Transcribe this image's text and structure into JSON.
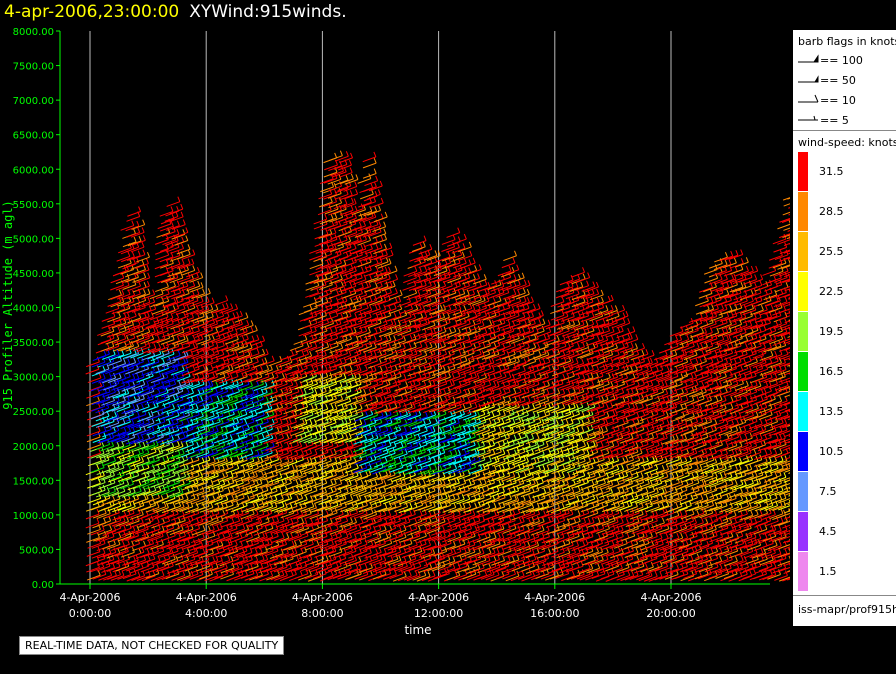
{
  "header": {
    "date_time": "4-apr-2006,23:00:00",
    "product": "XYWind:915winds."
  },
  "legend": {
    "barb_title": "barb flags in knots",
    "barb_items": [
      "== 100",
      "== 50",
      "== 10",
      "== 5"
    ],
    "speed_title": "wind-speed: knots",
    "speed_labels": [
      "31.5",
      "28.5",
      "25.5",
      "22.5",
      "19.5",
      "16.5",
      "13.5",
      "10.5",
      "7.5",
      "4.5",
      "1.5"
    ],
    "colors": {
      "31.5": "#ff0000",
      "28.5": "#ff8800",
      "25.5": "#ffbb00",
      "22.5": "#ffff00",
      "19.5": "#99ff33",
      "16.5": "#00dd00",
      "13.5": "#00ffff",
      "10.5": "#0000ff",
      "7.5": "#6699ff",
      "4.5": "#9933ff",
      "1.5": "#ee88ee"
    },
    "source": "iss-mapr/prof915h"
  },
  "notice": "REAL-TIME DATA, NOT CHECKED FOR QUALITY",
  "chart_data": {
    "type": "wind barb time-height",
    "title": "4-apr-2006,23:00:00  XYWind:915winds.",
    "xlabel": "time",
    "ylabel": "915 Profiler Altitude (m agl)",
    "ylim": [
      0,
      8000
    ],
    "xlim_hours": [
      -0.3,
      24.6
    ],
    "grid": "vertical lines at 4-hour ticks",
    "y_ticks": [
      "0.00",
      "500.00",
      "1000.00",
      "1500.00",
      "2000.00",
      "2500.00",
      "3000.00",
      "3500.00",
      "4000.00",
      "4500.00",
      "5000.00",
      "5500.00",
      "6000.00",
      "6500.00",
      "7000.00",
      "7500.00",
      "8000.00"
    ],
    "x_ticks": [
      {
        "hour": 0,
        "date": "4-Apr-2006",
        "time": "0:00:00"
      },
      {
        "hour": 4,
        "date": "4-Apr-2006",
        "time": "4:00:00"
      },
      {
        "hour": 8,
        "date": "4-Apr-2006",
        "time": "8:00:00"
      },
      {
        "hour": 12,
        "date": "4-Apr-2006",
        "time": "12:00:00"
      },
      {
        "hour": 16,
        "date": "4-Apr-2006",
        "time": "16:00:00"
      },
      {
        "hour": 20,
        "date": "4-Apr-2006",
        "time": "20:00:00"
      }
    ],
    "data_top_altitude_m": [
      {
        "hour": 0.0,
        "top": 3200
      },
      {
        "hour": 0.5,
        "top": 4000
      },
      {
        "hour": 1.0,
        "top": 5000
      },
      {
        "hour": 1.3,
        "top": 5500
      },
      {
        "hour": 2.0,
        "top": 3600
      },
      {
        "hour": 2.3,
        "top": 5300
      },
      {
        "hour": 2.7,
        "top": 5600
      },
      {
        "hour": 3.2,
        "top": 4600
      },
      {
        "hour": 4.0,
        "top": 3900
      },
      {
        "hour": 4.3,
        "top": 4100
      },
      {
        "hour": 5.0,
        "top": 3800
      },
      {
        "hour": 5.5,
        "top": 3500
      },
      {
        "hour": 6.0,
        "top": 3100
      },
      {
        "hour": 7.0,
        "top": 3400
      },
      {
        "hour": 7.5,
        "top": 4700
      },
      {
        "hour": 8.0,
        "top": 6100
      },
      {
        "hour": 8.6,
        "top": 6200
      },
      {
        "hour": 9.0,
        "top": 5200
      },
      {
        "hour": 9.4,
        "top": 6200
      },
      {
        "hour": 10.0,
        "top": 4700
      },
      {
        "hour": 10.5,
        "top": 3800
      },
      {
        "hour": 11.0,
        "top": 5000
      },
      {
        "hour": 11.8,
        "top": 4600
      },
      {
        "hour": 12.3,
        "top": 5100
      },
      {
        "hour": 13.0,
        "top": 4500
      },
      {
        "hour": 13.6,
        "top": 4200
      },
      {
        "hour": 14.2,
        "top": 4700
      },
      {
        "hour": 15.0,
        "top": 4000
      },
      {
        "hour": 15.6,
        "top": 3500
      },
      {
        "hour": 16.0,
        "top": 4300
      },
      {
        "hour": 16.6,
        "top": 4500
      },
      {
        "hour": 17.2,
        "top": 4200
      },
      {
        "hour": 18.0,
        "top": 3900
      },
      {
        "hour": 18.6,
        "top": 3400
      },
      {
        "hour": 19.2,
        "top": 3200
      },
      {
        "hour": 20.0,
        "top": 3600
      },
      {
        "hour": 20.6,
        "top": 3800
      },
      {
        "hour": 21.2,
        "top": 4600
      },
      {
        "hour": 21.8,
        "top": 4800
      },
      {
        "hour": 22.4,
        "top": 4500
      },
      {
        "hour": 23.0,
        "top": 4300
      },
      {
        "hour": 23.6,
        "top": 5100
      },
      {
        "hour": 24.0,
        "top": 5900
      },
      {
        "hour": 24.3,
        "top": 3900
      }
    ],
    "speed_bands_knots": [
      {
        "hour_range": [
          0,
          3
        ],
        "alt_range": [
          2000,
          3300
        ],
        "speed": 10.5
      },
      {
        "hour_range": [
          0,
          3
        ],
        "alt_range": [
          1200,
          2000
        ],
        "speed": 19.5
      },
      {
        "hour_range": [
          3,
          6
        ],
        "alt_range": [
          1800,
          2900
        ],
        "speed": 13.5
      },
      {
        "hour_range": [
          7,
          9
        ],
        "alt_range": [
          2000,
          3000
        ],
        "speed": 22.5
      },
      {
        "hour_range": [
          9,
          13
        ],
        "alt_range": [
          1600,
          2400
        ],
        "speed": 13.5
      },
      {
        "hour_range": [
          13,
          17
        ],
        "alt_range": [
          1600,
          2500
        ],
        "speed": 22.5
      },
      {
        "hour_range": [
          0,
          24.5
        ],
        "alt_range": [
          0,
          1200
        ],
        "speed": 31.5
      },
      {
        "hour_range": [
          0,
          24.5
        ],
        "alt_range": [
          3000,
          6200
        ],
        "speed": 31.5
      }
    ]
  }
}
